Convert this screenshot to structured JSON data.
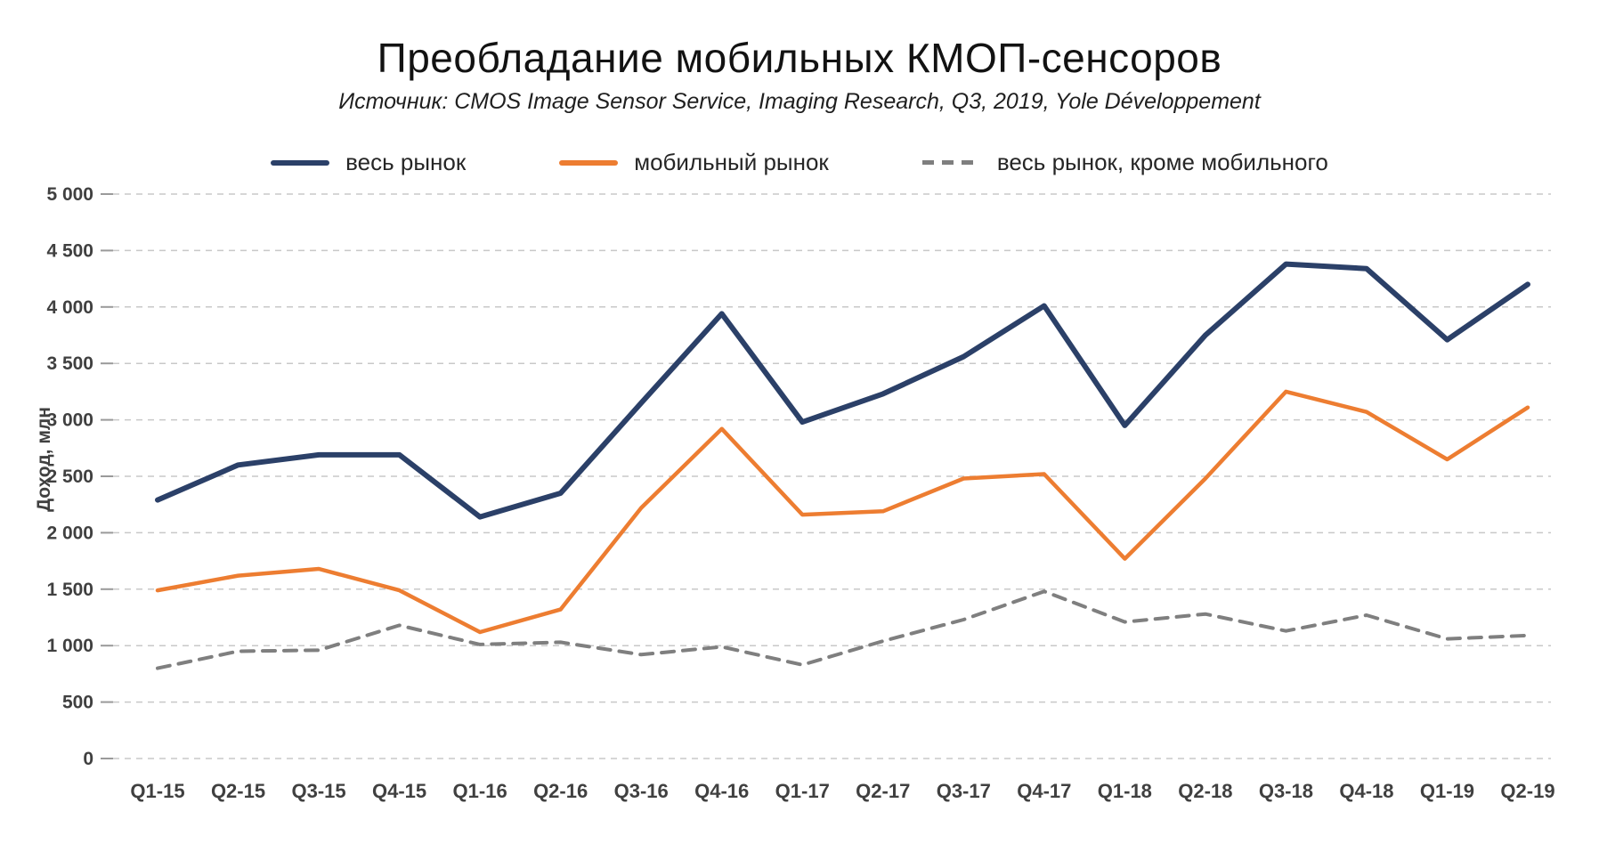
{
  "page": {
    "title": "Преобладание мобильных КМОП-сенсоров",
    "subtitle": "Источник: CMOS Image Sensor Service, Imaging Research, Q3, 2019, Yole Développement"
  },
  "chart_data": {
    "type": "line",
    "title": "Преобладание мобильных КМОП-сенсоров",
    "subtitle": "Источник: CMOS Image Sensor Service, Imaging Research, Q3, 2019, Yole Développement",
    "ylabel": "Доход, млн",
    "xlabel": "",
    "ylim": [
      0,
      5000
    ],
    "ytick_step": 500,
    "ytick_labels": [
      "0",
      "500",
      "1 000",
      "1 500",
      "2 000",
      "2 500",
      "3 000",
      "3 500",
      "4 000",
      "4 500",
      "5 000"
    ],
    "grid": "horizontal-dashed",
    "legend_position": "top",
    "categories": [
      "Q1-15",
      "Q2-15",
      "Q3-15",
      "Q4-15",
      "Q1-16",
      "Q2-16",
      "Q3-16",
      "Q4-16",
      "Q1-17",
      "Q2-17",
      "Q3-17",
      "Q4-17",
      "Q1-18",
      "Q2-18",
      "Q3-18",
      "Q4-18",
      "Q1-19",
      "Q2-19"
    ],
    "series": [
      {
        "name": "весь рынок",
        "color": "#2b4068",
        "dash": "",
        "stroke_width": 6,
        "values": [
          2290,
          2600,
          2690,
          2690,
          2140,
          2350,
          3150,
          3940,
          2980,
          3230,
          3560,
          4010,
          2950,
          3750,
          4380,
          4340,
          3710,
          4200
        ]
      },
      {
        "name": "мобильный рынок",
        "color": "#ed7d31",
        "dash": "",
        "stroke_width": 4.5,
        "values": [
          1490,
          1620,
          1680,
          1490,
          1120,
          1320,
          2220,
          2920,
          2160,
          2190,
          2480,
          2520,
          1770,
          2480,
          3250,
          3070,
          2650,
          3110
        ]
      },
      {
        "name": "весь рынок, кроме мобильного",
        "color": "#7f7f7f",
        "dash": "14 10",
        "stroke_width": 4,
        "values": [
          800,
          950,
          960,
          1180,
          1010,
          1030,
          920,
          990,
          830,
          1040,
          1230,
          1480,
          1210,
          1280,
          1130,
          1270,
          1060,
          1090
        ]
      }
    ],
    "style": {
      "grid_color": "#c8c8c8",
      "tick_color": "#9a9a9a",
      "label_color": "#404040"
    }
  }
}
